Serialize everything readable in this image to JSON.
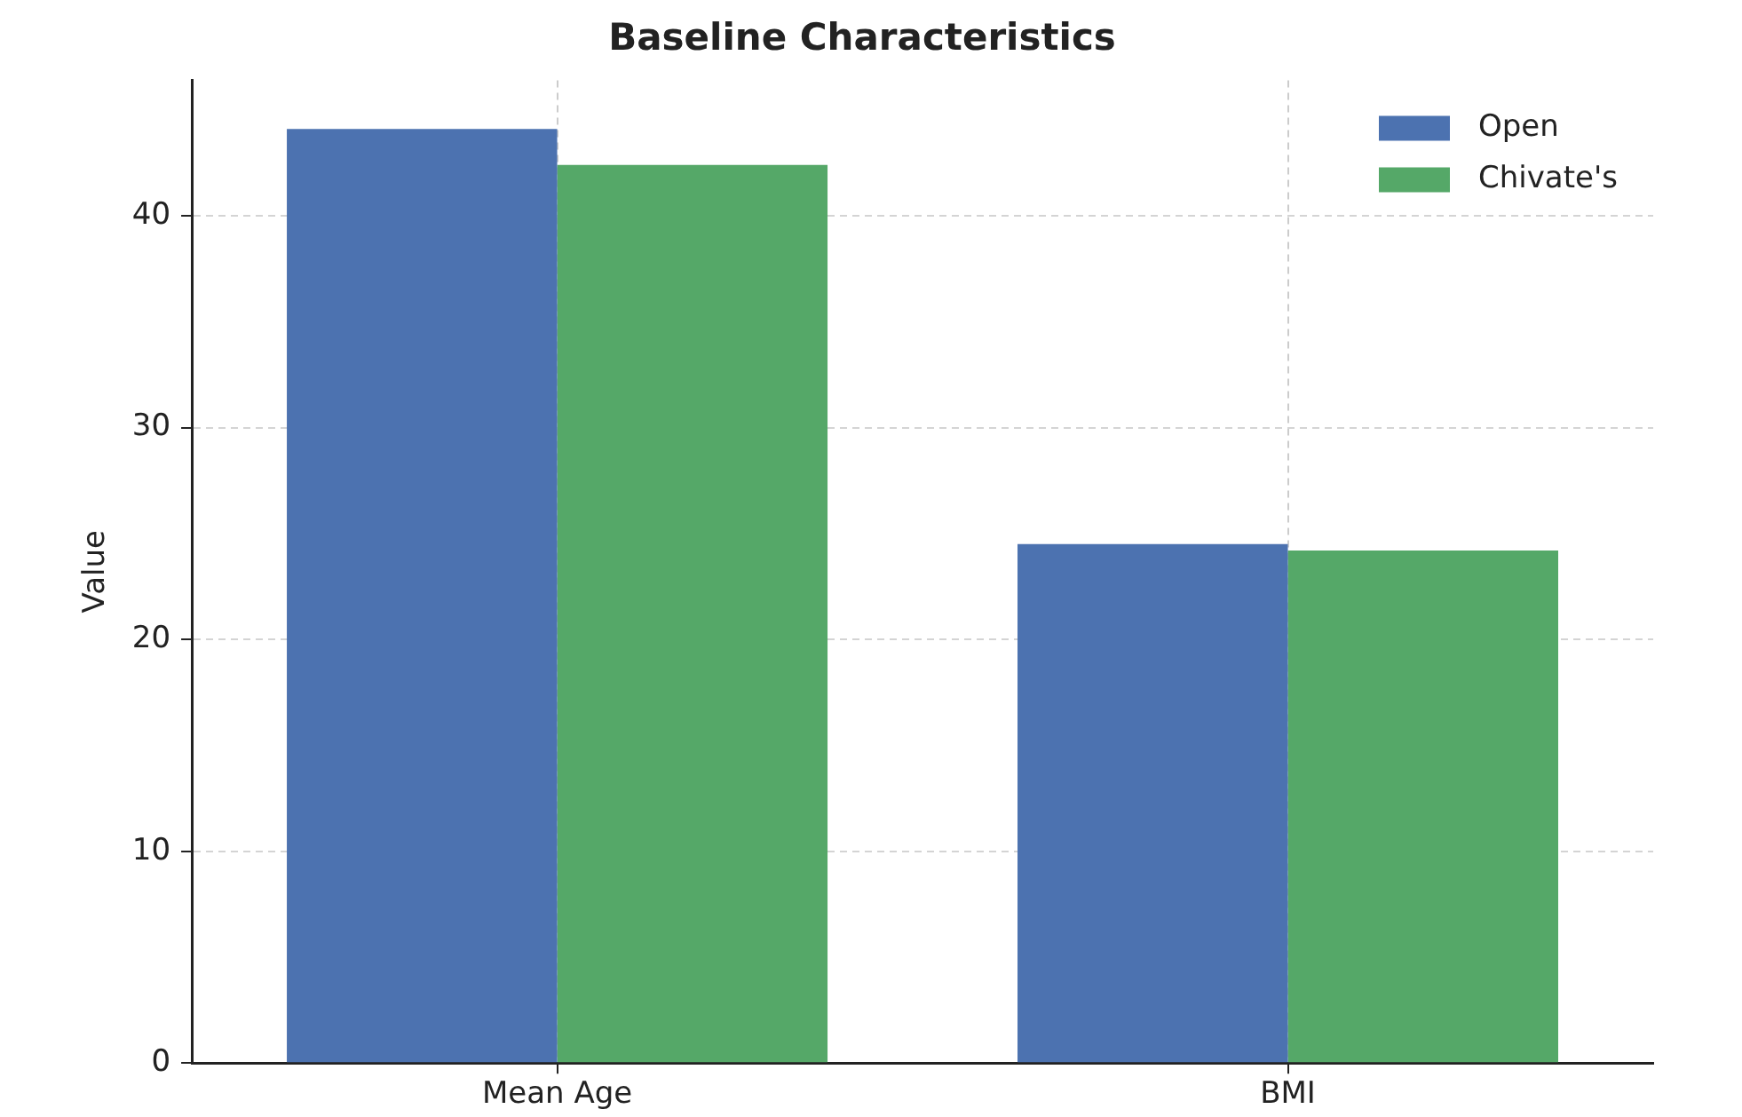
{
  "chart_data": {
    "type": "bar",
    "title": "Baseline Characteristics",
    "ylabel": "Value",
    "categories": [
      "Mean Age",
      "BMI"
    ],
    "series": [
      {
        "name": "Open",
        "color": "#4c72b0",
        "values": [
          44.1,
          24.5
        ]
      },
      {
        "name": "Chivate's",
        "color": "#55a868",
        "values": [
          42.4,
          24.2
        ]
      }
    ],
    "ylim": [
      0,
      46.4
    ],
    "yticks": [
      0,
      10,
      20,
      30,
      40
    ],
    "grid": true,
    "legend": "top right"
  }
}
